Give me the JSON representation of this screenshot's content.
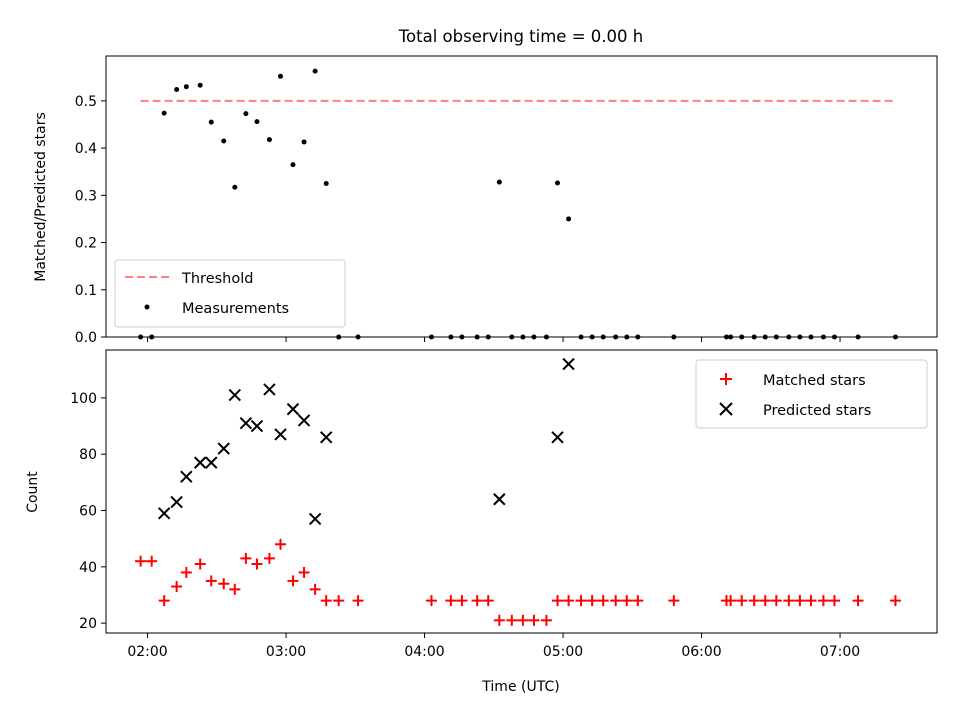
{
  "chart_data": [
    {
      "type": "scatter",
      "title": "Total observing time = 0.00 h",
      "ylabel": "Matched/Predicted stars",
      "xlabel": "",
      "xlim": [
        1.7,
        7.7
      ],
      "ylim": [
        0,
        0.595
      ],
      "x_ticks": [
        2,
        3,
        4,
        5,
        6,
        7
      ],
      "y_ticks": [
        0,
        0.1,
        0.2,
        0.3,
        0.4,
        0.5
      ],
      "y_tick_labels": [
        "0.0",
        "0.1",
        "0.2",
        "0.3",
        "0.4",
        "0.5"
      ],
      "grid": false,
      "legend_position": "lower-left",
      "threshold": {
        "name": "Threshold",
        "value": 0.5,
        "x_range": [
          1.95,
          7.4
        ],
        "color": "#ff7f7f",
        "style": "dashed"
      },
      "series": [
        {
          "name": "Measurements",
          "color": "#000000",
          "marker": "dot",
          "points": [
            [
              1.95,
              0
            ],
            [
              2.03,
              0
            ],
            [
              2.12,
              0.474
            ],
            [
              2.21,
              0.524
            ],
            [
              2.28,
              0.53
            ],
            [
              2.38,
              0.533
            ],
            [
              2.46,
              0.455
            ],
            [
              2.55,
              0.415
            ],
            [
              2.63,
              0.317
            ],
            [
              2.71,
              0.473
            ],
            [
              2.79,
              0.456
            ],
            [
              2.88,
              0.418
            ],
            [
              2.96,
              0.552
            ],
            [
              3.05,
              0.365
            ],
            [
              3.13,
              0.413
            ],
            [
              3.21,
              0.563
            ],
            [
              3.29,
              0.325
            ],
            [
              3.38,
              0
            ],
            [
              3.52,
              0
            ],
            [
              4.05,
              0
            ],
            [
              4.19,
              0
            ],
            [
              4.27,
              0
            ],
            [
              4.38,
              0
            ],
            [
              4.46,
              0
            ],
            [
              4.54,
              0.328
            ],
            [
              4.63,
              0
            ],
            [
              4.71,
              0
            ],
            [
              4.79,
              0
            ],
            [
              4.88,
              0
            ],
            [
              4.96,
              0.326
            ],
            [
              5.04,
              0.25
            ],
            [
              5.13,
              0
            ],
            [
              5.21,
              0
            ],
            [
              5.29,
              0
            ],
            [
              5.38,
              0
            ],
            [
              5.46,
              0
            ],
            [
              5.54,
              0
            ],
            [
              5.8,
              0
            ],
            [
              6.18,
              0
            ],
            [
              6.21,
              0
            ],
            [
              6.29,
              0
            ],
            [
              6.38,
              0
            ],
            [
              6.46,
              0
            ],
            [
              6.54,
              0
            ],
            [
              6.63,
              0
            ],
            [
              6.71,
              0
            ],
            [
              6.79,
              0
            ],
            [
              6.88,
              0
            ],
            [
              6.96,
              0
            ],
            [
              7.13,
              0
            ],
            [
              7.4,
              0
            ]
          ]
        }
      ]
    },
    {
      "type": "scatter",
      "title": "",
      "ylabel": "Count",
      "xlabel": "Time (UTC)",
      "xlim": [
        1.7,
        7.7
      ],
      "ylim": [
        16.5,
        117
      ],
      "x_ticks": [
        2,
        3,
        4,
        5,
        6,
        7
      ],
      "x_tick_labels": [
        "02:00",
        "03:00",
        "04:00",
        "05:00",
        "06:00",
        "07:00"
      ],
      "y_ticks": [
        20,
        40,
        60,
        80,
        100
      ],
      "y_tick_labels": [
        "20",
        "40",
        "60",
        "80",
        "100"
      ],
      "grid": false,
      "legend_position": "upper-right",
      "series": [
        {
          "name": "Matched stars",
          "color": "#ff0000",
          "marker": "plus",
          "points": [
            [
              1.95,
              42
            ],
            [
              2.03,
              42
            ],
            [
              2.12,
              28
            ],
            [
              2.21,
              33
            ],
            [
              2.28,
              38
            ],
            [
              2.38,
              41
            ],
            [
              2.46,
              35
            ],
            [
              2.55,
              34
            ],
            [
              2.63,
              32
            ],
            [
              2.71,
              43
            ],
            [
              2.79,
              41
            ],
            [
              2.88,
              43
            ],
            [
              2.96,
              48
            ],
            [
              3.05,
              35
            ],
            [
              3.13,
              38
            ],
            [
              3.21,
              32
            ],
            [
              3.29,
              28
            ],
            [
              3.38,
              28
            ],
            [
              3.52,
              28
            ],
            [
              4.05,
              28
            ],
            [
              4.19,
              28
            ],
            [
              4.27,
              28
            ],
            [
              4.38,
              28
            ],
            [
              4.46,
              28
            ],
            [
              4.54,
              21
            ],
            [
              4.63,
              21
            ],
            [
              4.71,
              21
            ],
            [
              4.79,
              21
            ],
            [
              4.88,
              21
            ],
            [
              4.96,
              28
            ],
            [
              5.04,
              28
            ],
            [
              5.13,
              28
            ],
            [
              5.21,
              28
            ],
            [
              5.29,
              28
            ],
            [
              5.38,
              28
            ],
            [
              5.46,
              28
            ],
            [
              5.54,
              28
            ],
            [
              5.8,
              28
            ],
            [
              6.18,
              28
            ],
            [
              6.21,
              28
            ],
            [
              6.29,
              28
            ],
            [
              6.38,
              28
            ],
            [
              6.46,
              28
            ],
            [
              6.54,
              28
            ],
            [
              6.63,
              28
            ],
            [
              6.71,
              28
            ],
            [
              6.79,
              28
            ],
            [
              6.88,
              28
            ],
            [
              6.96,
              28
            ],
            [
              7.13,
              28
            ],
            [
              7.4,
              28
            ]
          ]
        },
        {
          "name": "Predicted stars",
          "color": "#000000",
          "marker": "cross",
          "points": [
            [
              2.12,
              59
            ],
            [
              2.21,
              63
            ],
            [
              2.28,
              72
            ],
            [
              2.38,
              77
            ],
            [
              2.46,
              77
            ],
            [
              2.55,
              82
            ],
            [
              2.63,
              101
            ],
            [
              2.71,
              91
            ],
            [
              2.79,
              90
            ],
            [
              2.88,
              103
            ],
            [
              2.96,
              87
            ],
            [
              3.05,
              96
            ],
            [
              3.13,
              92
            ],
            [
              3.21,
              57
            ],
            [
              3.29,
              86
            ],
            [
              4.54,
              64
            ],
            [
              4.96,
              86
            ],
            [
              5.04,
              112
            ]
          ]
        }
      ]
    }
  ]
}
